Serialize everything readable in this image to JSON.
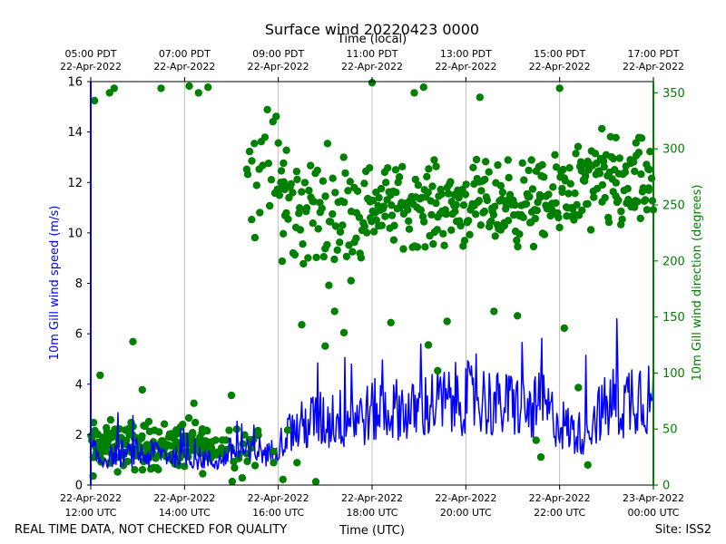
{
  "chart_data": {
    "type": "line",
    "title": "Surface wind 20220423 0000",
    "top_axis_title": "Time (local)",
    "xlabel": "Time (UTC)",
    "ylabel_left": "10m Gill wind speed (m/s)",
    "ylabel_right": "10m Gill wind direction (degrees)",
    "footer_left": "REAL TIME DATA, NOT CHECKED FOR QUALITY",
    "footer_right": "Site: ISS2",
    "x_range_hours": [
      12,
      24
    ],
    "ylim_left": [
      0,
      16
    ],
    "ylim_right": [
      0,
      360
    ],
    "yticks_left": [
      "0",
      "2",
      "4",
      "6",
      "8",
      "10",
      "12",
      "14",
      "16"
    ],
    "yticks_right": [
      "0",
      "50",
      "100",
      "150",
      "200",
      "250",
      "300",
      "350"
    ],
    "bottom_ticks": [
      {
        "hour": 12,
        "date": "22-Apr-2022",
        "time": "12:00 UTC"
      },
      {
        "hour": 14,
        "date": "22-Apr-2022",
        "time": "14:00 UTC"
      },
      {
        "hour": 16,
        "date": "22-Apr-2022",
        "time": "16:00 UTC"
      },
      {
        "hour": 18,
        "date": "22-Apr-2022",
        "time": "18:00 UTC"
      },
      {
        "hour": 20,
        "date": "22-Apr-2022",
        "time": "20:00 UTC"
      },
      {
        "hour": 22,
        "date": "22-Apr-2022",
        "time": "22:00 UTC"
      },
      {
        "hour": 24,
        "date": "23-Apr-2022",
        "time": "00:00 UTC"
      }
    ],
    "top_ticks": [
      {
        "hour": 12,
        "time": "05:00 PDT",
        "date": "22-Apr-2022"
      },
      {
        "hour": 14,
        "time": "07:00 PDT",
        "date": "22-Apr-2022"
      },
      {
        "hour": 16,
        "time": "09:00 PDT",
        "date": "22-Apr-2022"
      },
      {
        "hour": 18,
        "time": "11:00 PDT",
        "date": "22-Apr-2022"
      },
      {
        "hour": 20,
        "time": "13:00 PDT",
        "date": "22-Apr-2022"
      },
      {
        "hour": 22,
        "time": "15:00 PDT",
        "date": "22-Apr-2022"
      },
      {
        "hour": 24,
        "time": "17:00 PDT",
        "date": "22-Apr-2022"
      }
    ],
    "series": [
      {
        "name": "wind speed",
        "axis": "left",
        "color": "#0000ff",
        "style": "line",
        "x": [
          12.0,
          12.2,
          12.4,
          12.6,
          12.8,
          13.0,
          13.2,
          13.4,
          13.6,
          13.8,
          14.0,
          14.2,
          14.4,
          14.6,
          14.8,
          15.0,
          15.2,
          15.4,
          15.6,
          15.8,
          16.0,
          16.2,
          16.4,
          16.6,
          16.8,
          17.0,
          17.2,
          17.4,
          17.6,
          17.8,
          18.0,
          18.2,
          18.4,
          18.6,
          18.8,
          19.0,
          19.2,
          19.4,
          19.6,
          19.8,
          20.0,
          20.2,
          20.4,
          20.6,
          20.8,
          21.0,
          21.2,
          21.4,
          21.6,
          21.8,
          22.0,
          22.2,
          22.4,
          22.6,
          22.8,
          23.0,
          23.2,
          23.4,
          23.6,
          23.8,
          24.0
        ],
        "values": [
          1.4,
          1.0,
          1.1,
          1.3,
          1.2,
          1.3,
          1.1,
          1.4,
          1.2,
          1.1,
          1.2,
          1.0,
          1.1,
          0.9,
          1.0,
          1.4,
          1.3,
          1.2,
          1.4,
          1.2,
          1.6,
          2.0,
          2.2,
          2.4,
          2.6,
          2.5,
          2.7,
          2.6,
          2.8,
          2.7,
          2.9,
          3.0,
          2.9,
          3.1,
          2.8,
          3.0,
          3.2,
          3.3,
          3.2,
          3.4,
          3.5,
          3.3,
          3.4,
          3.2,
          3.1,
          3.3,
          3.0,
          2.9,
          3.2,
          2.8,
          2.5,
          2.2,
          2.0,
          2.4,
          2.8,
          3.0,
          3.4,
          3.2,
          3.8,
          3.6,
          3.3
        ],
        "noise_amplitude": [
          0.6,
          0.5,
          0.4,
          0.6,
          0.5,
          0.6,
          0.5,
          0.5,
          0.5,
          0.4,
          0.4,
          0.4,
          0.5,
          0.4,
          0.4,
          0.6,
          0.6,
          0.6,
          0.6,
          0.5,
          0.6,
          0.8,
          1.0,
          1.1,
          1.2,
          1.2,
          1.3,
          1.2,
          1.3,
          1.2,
          1.3,
          1.3,
          1.2,
          1.3,
          1.2,
          1.3,
          1.4,
          1.5,
          1.4,
          1.5,
          1.5,
          1.4,
          1.5,
          1.4,
          1.3,
          1.4,
          1.3,
          1.2,
          1.4,
          1.2,
          1.1,
          1.0,
          0.9,
          1.1,
          1.2,
          1.4,
          1.6,
          1.5,
          1.8,
          1.7,
          1.5
        ],
        "samples_per_hour": 50
      },
      {
        "name": "wind direction",
        "axis": "right",
        "color": "#008000",
        "style": "scatter",
        "segments": [
          {
            "from": 12.0,
            "to": 14.6,
            "center": 35,
            "spread": 18,
            "samples_per_hour": 70
          },
          {
            "from": 14.6,
            "to": 15.6,
            "center": 35,
            "spread": 22,
            "samples_per_hour": 30
          },
          {
            "from": 15.3,
            "to": 16.2,
            "center": 280,
            "spread": 50,
            "samples_per_hour": 30
          },
          {
            "from": 16.0,
            "to": 17.8,
            "center": 245,
            "spread": 45,
            "samples_per_hour": 45
          },
          {
            "from": 17.8,
            "to": 22.0,
            "center": 250,
            "spread": 30,
            "samples_per_hour": 55
          },
          {
            "from": 22.0,
            "to": 24.0,
            "center": 265,
            "spread": 35,
            "samples_per_hour": 55
          }
        ],
        "points": [
          [
            12.08,
            343
          ],
          [
            12.4,
            350
          ],
          [
            12.5,
            354
          ],
          [
            13.5,
            354
          ],
          [
            14.1,
            356
          ],
          [
            14.3,
            350
          ],
          [
            14.5,
            355
          ],
          [
            12.2,
            98
          ],
          [
            12.9,
            128
          ],
          [
            13.1,
            85
          ],
          [
            14.2,
            73
          ],
          [
            16.1,
            5
          ],
          [
            16.4,
            20
          ],
          [
            16.8,
            3
          ],
          [
            16.5,
            143
          ],
          [
            17.2,
            155
          ],
          [
            17.4,
            136
          ],
          [
            17.0,
            124
          ],
          [
            18.0,
            359
          ],
          [
            18.9,
            350
          ],
          [
            19.1,
            355
          ],
          [
            19.2,
            125
          ],
          [
            19.4,
            102
          ],
          [
            20.6,
            155
          ],
          [
            20.9,
            290
          ],
          [
            20.3,
            346
          ],
          [
            21.5,
            40
          ],
          [
            21.6,
            25
          ],
          [
            21.4,
            290
          ],
          [
            22.0,
            354
          ],
          [
            22.1,
            140
          ],
          [
            22.4,
            87
          ],
          [
            22.6,
            18
          ],
          [
            23.2,
            310
          ],
          [
            23.6,
            280
          ],
          [
            23.9,
            265
          ],
          [
            22.9,
            318
          ],
          [
            18.4,
            145
          ],
          [
            19.6,
            146
          ],
          [
            21.1,
            151
          ],
          [
            16.2,
            49
          ],
          [
            15.9,
            20
          ],
          [
            12.05,
            8
          ],
          [
            15.0,
            80
          ],
          [
            15.9,
            30
          ]
        ]
      }
    ]
  }
}
